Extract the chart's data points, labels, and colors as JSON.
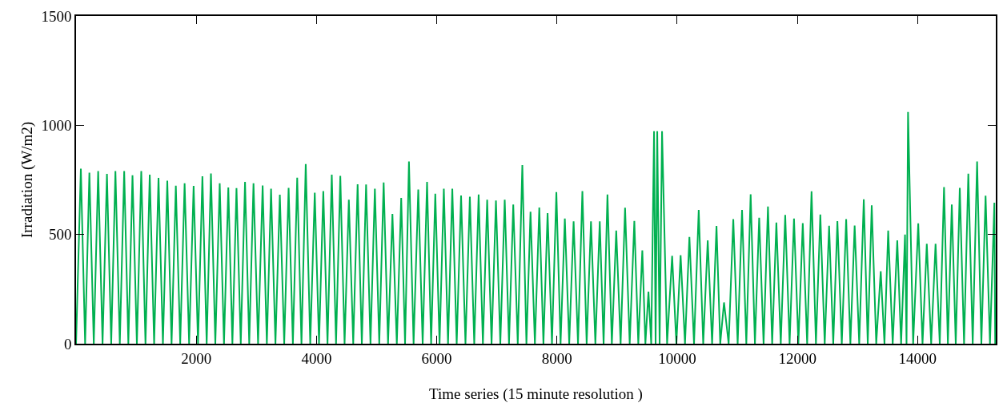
{
  "chart_data": {
    "type": "line",
    "xlabel": "Time series (15 minute resolution )",
    "ylabel": "Irradiation (W/m2)",
    "xlim": [
      0,
      15300
    ],
    "xticks": [
      2000,
      4000,
      6000,
      8000,
      10000,
      12000,
      14000
    ],
    "ylim": [
      0,
      1500
    ],
    "yticks": [
      0,
      500,
      1000,
      1500
    ],
    "grid": false,
    "marker": "none",
    "line_style": "solid",
    "series": [
      {
        "color": "#00b050",
        "x": [
          0,
          80,
          151,
          222,
          295,
          368,
          441,
          514,
          585,
          655,
          728,
          801,
          870,
          939,
          1012,
          1085,
          1155,
          1226,
          1299,
          1372,
          1445,
          1518,
          1589,
          1660,
          1733,
          1806,
          1881,
          1956,
          2029,
          2102,
          2173,
          2244,
          2317,
          2390,
          2461,
          2533,
          2601,
          2669,
          2740,
          2811,
          2881,
          2952,
          3028,
          3104,
          3174,
          3244,
          3317,
          3390,
          3463,
          3536,
          3607,
          3679,
          3750,
          3821,
          3896,
          3971,
          4042,
          4113,
          4183,
          4254,
          4325,
          4396,
          4467,
          4538,
          4611,
          4684,
          4754,
          4825,
          4898,
          4971,
          5044,
          5117,
          5190,
          5263,
          5336,
          5409,
          5473,
          5538,
          5615,
          5693,
          5766,
          5839,
          5907,
          5976,
          6047,
          6118,
          6188,
          6259,
          6332,
          6405,
          6478,
          6551,
          6624,
          6697,
          6768,
          6839,
          6912,
          6985,
          7058,
          7131,
          7202,
          7273,
          7348,
          7424,
          7492,
          7560,
          7633,
          7706,
          7775,
          7844,
          7917,
          7990,
          8060,
          8131,
          8204,
          8277,
          8350,
          8423,
          8494,
          8566,
          8639,
          8712,
          8776,
          8840,
          8913,
          8986,
          9059,
          9133,
          9210,
          9287,
          9353,
          9420,
          9471,
          9522,
          9568,
          9615,
          9641,
          9668,
          9708,
          9748,
          9832,
          9916,
          9986,
          10057,
          10130,
          10203,
          10280,
          10358,
          10433,
          10508,
          10581,
          10654,
          10716,
          10779,
          10856,
          10933,
          11006,
          11079,
          11150,
          11222,
          11293,
          11364,
          11437,
          11510,
          11580,
          11650,
          11723,
          11797,
          11870,
          11943,
          12016,
          12089,
          12162,
          12235,
          12308,
          12381,
          12454,
          12527,
          12596,
          12665,
          12738,
          12811,
          12881,
          12952,
          13028,
          13104,
          13170,
          13236,
          13311,
          13386,
          13448,
          13510,
          13585,
          13661,
          13725,
          13790,
          13815,
          13840,
          13925,
          14010,
          14081,
          14152,
          14225,
          14298,
          14368,
          14439,
          14503,
          14568,
          14634,
          14701,
          14772,
          14843,
          14916,
          14989,
          15060,
          15130,
          15203,
          15276,
          15290
        ],
        "values": [
          0,
          801,
          0,
          783,
          0,
          790,
          0,
          777,
          0,
          790,
          0,
          790,
          0,
          771,
          0,
          790,
          0,
          774,
          0,
          759,
          0,
          746,
          0,
          723,
          0,
          734,
          0,
          722,
          0,
          766,
          0,
          779,
          0,
          734,
          0,
          715,
          0,
          712,
          0,
          741,
          0,
          734,
          0,
          724,
          0,
          710,
          0,
          682,
          0,
          713,
          0,
          760,
          0,
          822,
          0,
          691,
          0,
          699,
          0,
          774,
          0,
          768,
          0,
          659,
          0,
          730,
          0,
          729,
          0,
          710,
          0,
          738,
          0,
          594,
          0,
          667,
          0,
          834,
          0,
          706,
          0,
          741,
          0,
          687,
          0,
          710,
          0,
          710,
          0,
          678,
          0,
          673,
          0,
          683,
          0,
          659,
          0,
          655,
          0,
          659,
          0,
          637,
          0,
          818,
          0,
          604,
          0,
          623,
          0,
          598,
          0,
          694,
          0,
          573,
          0,
          560,
          0,
          699,
          0,
          560,
          0,
          560,
          0,
          683,
          0,
          518,
          0,
          622,
          0,
          562,
          0,
          427,
          0,
          238,
          0,
          973,
          0,
          973,
          0,
          973,
          0,
          402,
          0,
          405,
          0,
          489,
          0,
          612,
          0,
          473,
          0,
          539,
          0,
          189,
          0,
          570,
          0,
          612,
          0,
          684,
          0,
          577,
          0,
          628,
          0,
          555,
          0,
          589,
          0,
          573,
          0,
          552,
          0,
          698,
          0,
          591,
          0,
          540,
          0,
          561,
          0,
          570,
          0,
          541,
          0,
          661,
          0,
          633,
          0,
          332,
          0,
          518,
          0,
          473,
          0,
          500,
          0,
          1061,
          0,
          551,
          0,
          457,
          0,
          457,
          0,
          717,
          0,
          637,
          0,
          713,
          0,
          778,
          0,
          834,
          0,
          677,
          0,
          645,
          0
        ]
      }
    ]
  }
}
